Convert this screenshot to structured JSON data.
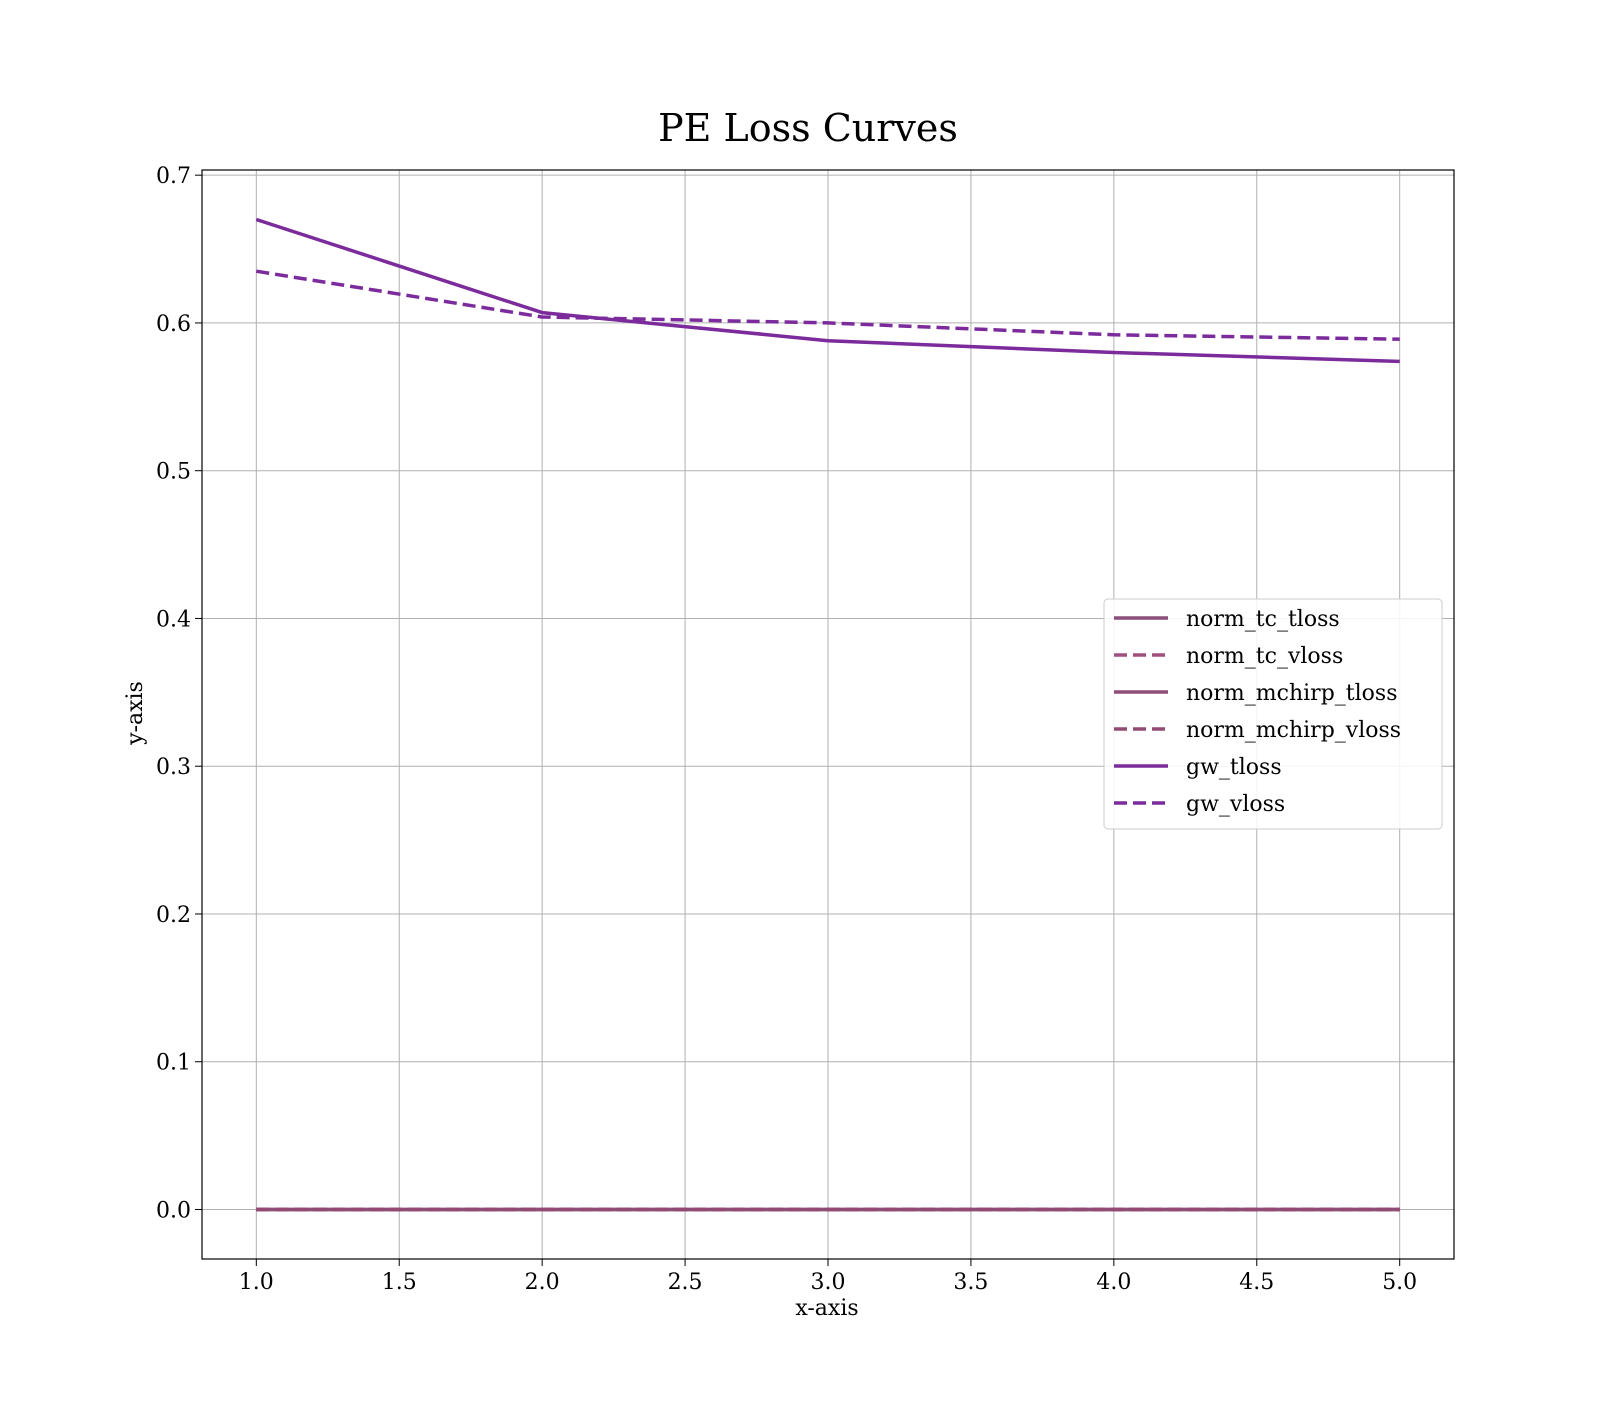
{
  "chart_data": {
    "type": "line",
    "title": "PE Loss Curves",
    "xlabel": "x-axis",
    "ylabel": "y-axis",
    "xlim": [
      0.81,
      5.19
    ],
    "ylim": [
      -0.0335,
      0.7035
    ],
    "xticks": [
      "1.0",
      "1.5",
      "2.0",
      "2.5",
      "3.0",
      "3.5",
      "4.0",
      "4.5",
      "5.0"
    ],
    "yticks": [
      "0.0",
      "0.1",
      "0.2",
      "0.3",
      "0.4",
      "0.5",
      "0.6",
      "0.7"
    ],
    "grid": true,
    "legend_position": "center-right",
    "x": [
      1,
      2,
      3,
      4,
      5
    ],
    "series": [
      {
        "name": "norm_tc_tloss",
        "values": [
          0,
          0,
          0,
          0,
          0
        ],
        "color": "#8b4f7b",
        "dash": "solid"
      },
      {
        "name": "norm_tc_vloss",
        "values": [
          0,
          0,
          0,
          0,
          0
        ],
        "color": "#a0507f",
        "dash": "dashed"
      },
      {
        "name": "norm_mchirp_tloss",
        "values": [
          0,
          0,
          0,
          0,
          0
        ],
        "color": "#8e4d78",
        "dash": "solid"
      },
      {
        "name": "norm_mchirp_vloss",
        "values": [
          0,
          0,
          0,
          0,
          0
        ],
        "color": "#934a72",
        "dash": "dashed"
      },
      {
        "name": "gw_tloss",
        "values": [
          0.67,
          0.607,
          0.588,
          0.58,
          0.574
        ],
        "color": "#7b2b9b",
        "dash": "solid"
      },
      {
        "name": "gw_vloss",
        "values": [
          0.635,
          0.604,
          0.6,
          0.592,
          0.589
        ],
        "color": "#7b2b9b",
        "dash": "dashed"
      }
    ]
  }
}
